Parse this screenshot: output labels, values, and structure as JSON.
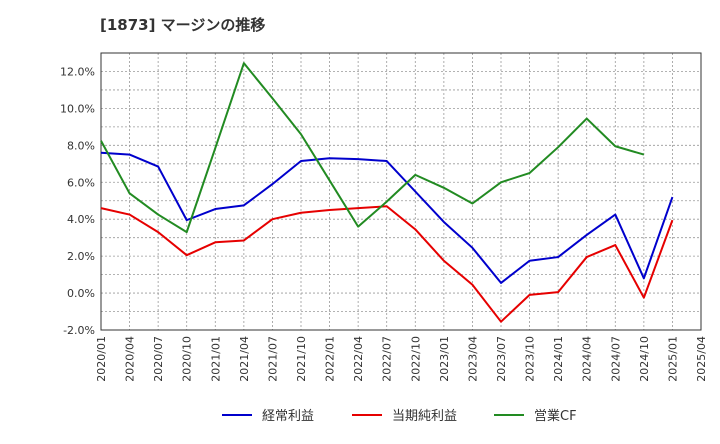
{
  "chart_data": {
    "type": "line",
    "title": "[1873]  マージンの推移",
    "xlabel": "",
    "ylabel": "",
    "categories": [
      "2020/01",
      "2020/04",
      "2020/07",
      "2020/10",
      "2021/01",
      "2021/04",
      "2021/07",
      "2021/10",
      "2022/01",
      "2022/04",
      "2022/07",
      "2022/10",
      "2023/01",
      "2023/04",
      "2023/07",
      "2023/10",
      "2024/01",
      "2024/04",
      "2024/07",
      "2024/10",
      "2025/01",
      "2025/04"
    ],
    "y_ticks": [
      "-2.0%",
      "0.0%",
      "2.0%",
      "4.0%",
      "6.0%",
      "8.0%",
      "10.0%",
      "12.0%"
    ],
    "ylim": [
      -2.0,
      13.0
    ],
    "grid": true,
    "legend_position": "bottom",
    "series": [
      {
        "name": "経常利益",
        "color": "#0000cc",
        "values": [
          7.6,
          7.5,
          6.85,
          3.95,
          4.55,
          4.75,
          5.9,
          7.15,
          7.3,
          7.25,
          7.15,
          5.5,
          3.85,
          2.45,
          0.55,
          1.75,
          1.95,
          3.15,
          4.25,
          0.8,
          5.2,
          null
        ]
      },
      {
        "name": "当期純利益",
        "color": "#e60000",
        "values": [
          4.6,
          4.25,
          3.3,
          2.05,
          2.75,
          2.85,
          4.0,
          4.35,
          4.5,
          4.6,
          4.7,
          3.45,
          1.75,
          0.45,
          -1.55,
          -0.1,
          0.05,
          1.95,
          2.6,
          -0.25,
          3.95,
          null
        ]
      },
      {
        "name": "営業CF",
        "color": "#228b22",
        "values": [
          8.25,
          5.4,
          4.25,
          3.3,
          7.85,
          12.45,
          10.55,
          8.6,
          6.1,
          3.6,
          4.95,
          6.4,
          5.7,
          4.85,
          6.0,
          6.5,
          7.9,
          9.45,
          7.95,
          7.5,
          null,
          null
        ]
      }
    ]
  }
}
